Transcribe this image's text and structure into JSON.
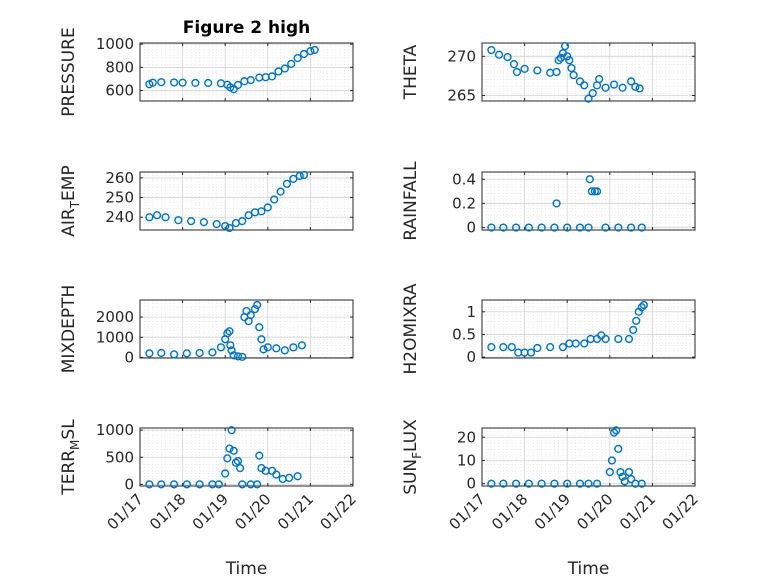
{
  "chart_data": [
    {
      "type": "scatter",
      "title": "Figure 2 high",
      "ylabel": {
        "main": "PRESSURE"
      },
      "x_range": [
        "01/17",
        "01/22"
      ],
      "ylim": [
        510,
        1010
      ],
      "yticks": [
        "600",
        "800",
        "1000"
      ],
      "ytick_values": [
        600,
        800,
        1000
      ],
      "xticks": [],
      "xlabel": "",
      "grid": true,
      "points": [
        [
          0.22,
          655
        ],
        [
          0.3,
          668
        ],
        [
          0.5,
          672
        ],
        [
          0.8,
          670
        ],
        [
          1.0,
          668
        ],
        [
          1.3,
          666
        ],
        [
          1.6,
          665
        ],
        [
          1.9,
          662
        ],
        [
          2.05,
          650
        ],
        [
          2.12,
          628
        ],
        [
          2.2,
          612
        ],
        [
          2.3,
          648
        ],
        [
          2.45,
          680
        ],
        [
          2.6,
          690
        ],
        [
          2.8,
          712
        ],
        [
          2.95,
          715
        ],
        [
          3.1,
          722
        ],
        [
          3.25,
          765
        ],
        [
          3.4,
          790
        ],
        [
          3.55,
          830
        ],
        [
          3.7,
          880
        ],
        [
          3.85,
          915
        ],
        [
          4.0,
          940
        ],
        [
          4.1,
          950
        ]
      ]
    },
    {
      "type": "scatter",
      "title": "",
      "ylabel": {
        "main": "THETA"
      },
      "x_range": [
        "01/17",
        "01/22"
      ],
      "ylim": [
        264.3,
        271.7
      ],
      "yticks": [
        "265",
        "270"
      ],
      "ytick_values": [
        265,
        270
      ],
      "xticks": [],
      "xlabel": "",
      "grid": true,
      "points": [
        [
          0.22,
          270.8
        ],
        [
          0.4,
          270.2
        ],
        [
          0.6,
          269.9
        ],
        [
          0.75,
          269.0
        ],
        [
          0.82,
          268.0
        ],
        [
          1.0,
          268.4
        ],
        [
          1.3,
          268.2
        ],
        [
          1.6,
          267.9
        ],
        [
          1.75,
          268.0
        ],
        [
          1.8,
          269.5
        ],
        [
          1.85,
          269.8
        ],
        [
          1.9,
          270.4
        ],
        [
          1.95,
          271.3
        ],
        [
          2.0,
          270.0
        ],
        [
          2.05,
          269.5
        ],
        [
          2.1,
          268.5
        ],
        [
          2.15,
          267.6
        ],
        [
          2.3,
          266.8
        ],
        [
          2.4,
          266.3
        ],
        [
          2.5,
          264.6
        ],
        [
          2.6,
          265.3
        ],
        [
          2.7,
          266.3
        ],
        [
          2.75,
          267.1
        ],
        [
          2.9,
          266.0
        ],
        [
          3.1,
          266.4
        ],
        [
          3.3,
          266.0
        ],
        [
          3.5,
          266.8
        ],
        [
          3.6,
          266.1
        ],
        [
          3.7,
          265.9
        ]
      ]
    },
    {
      "type": "scatter",
      "title": "",
      "ylabel": {
        "main": "AIR",
        "sub": "T",
        "rest": "EMP"
      },
      "x_range": [
        "01/17",
        "01/22"
      ],
      "ylim": [
        233.5,
        263
      ],
      "yticks": [
        "240",
        "250",
        "260"
      ],
      "ytick_values": [
        240,
        250,
        260
      ],
      "xticks": [],
      "xlabel": "",
      "grid": true,
      "points": [
        [
          0.22,
          240
        ],
        [
          0.4,
          241
        ],
        [
          0.6,
          240
        ],
        [
          0.9,
          238.5
        ],
        [
          1.2,
          238
        ],
        [
          1.5,
          237.5
        ],
        [
          1.8,
          236.5
        ],
        [
          2.0,
          235.5
        ],
        [
          2.1,
          234.5
        ],
        [
          2.25,
          237
        ],
        [
          2.4,
          238
        ],
        [
          2.55,
          241
        ],
        [
          2.7,
          242.5
        ],
        [
          2.85,
          243
        ],
        [
          3.0,
          245
        ],
        [
          3.15,
          249
        ],
        [
          3.3,
          253
        ],
        [
          3.45,
          257
        ],
        [
          3.6,
          259.5
        ],
        [
          3.75,
          261
        ],
        [
          3.85,
          261.5
        ]
      ]
    },
    {
      "type": "scatter",
      "title": "",
      "ylabel": {
        "main": "RAINFALL"
      },
      "x_range": [
        "01/17",
        "01/22"
      ],
      "ylim": [
        -0.02,
        0.46
      ],
      "yticks": [
        "0",
        "0.2",
        "0.4"
      ],
      "ytick_values": [
        0,
        0.2,
        0.4
      ],
      "xticks": [],
      "xlabel": "",
      "grid": true,
      "points": [
        [
          0.22,
          0
        ],
        [
          0.5,
          0
        ],
        [
          0.8,
          0
        ],
        [
          1.1,
          0
        ],
        [
          1.4,
          0
        ],
        [
          1.7,
          0
        ],
        [
          1.75,
          0.2
        ],
        [
          2.0,
          0
        ],
        [
          2.3,
          0
        ],
        [
          2.5,
          0
        ],
        [
          2.53,
          0.4
        ],
        [
          2.58,
          0.3
        ],
        [
          2.65,
          0.3
        ],
        [
          2.7,
          0.3
        ],
        [
          2.9,
          0
        ],
        [
          3.2,
          0
        ],
        [
          3.5,
          0
        ],
        [
          3.75,
          0
        ]
      ]
    },
    {
      "type": "scatter",
      "title": "",
      "ylabel": {
        "main": "MIXDEPTH"
      },
      "x_range": [
        "01/17",
        "01/22"
      ],
      "ylim": [
        -30,
        2850
      ],
      "yticks": [
        "0",
        "1000",
        "2000"
      ],
      "ytick_values": [
        0,
        1000,
        2000
      ],
      "xticks": [],
      "xlabel": "",
      "grid": true,
      "points": [
        [
          0.22,
          200
        ],
        [
          0.5,
          220
        ],
        [
          0.8,
          150
        ],
        [
          1.1,
          200
        ],
        [
          1.4,
          220
        ],
        [
          1.7,
          250
        ],
        [
          1.9,
          500
        ],
        [
          2.0,
          900
        ],
        [
          2.05,
          1200
        ],
        [
          2.1,
          1300
        ],
        [
          2.12,
          600
        ],
        [
          2.15,
          350
        ],
        [
          2.2,
          100
        ],
        [
          2.3,
          50
        ],
        [
          2.4,
          30
        ],
        [
          2.45,
          2000
        ],
        [
          2.5,
          2300
        ],
        [
          2.55,
          1800
        ],
        [
          2.6,
          2100
        ],
        [
          2.7,
          2400
        ],
        [
          2.75,
          2600
        ],
        [
          2.8,
          1500
        ],
        [
          2.85,
          900
        ],
        [
          2.9,
          400
        ],
        [
          3.0,
          500
        ],
        [
          3.2,
          450
        ],
        [
          3.4,
          350
        ],
        [
          3.6,
          500
        ],
        [
          3.8,
          600
        ]
      ]
    },
    {
      "type": "scatter",
      "title": "",
      "ylabel": {
        "main": "H2OMIXRA"
      },
      "x_range": [
        "01/17",
        "01/22"
      ],
      "ylim": [
        -0.02,
        1.26
      ],
      "yticks": [
        "0",
        "0.5",
        "1"
      ],
      "ytick_values": [
        0,
        0.5,
        1
      ],
      "xticks": [],
      "xlabel": "",
      "grid": true,
      "points": [
        [
          0.22,
          0.22
        ],
        [
          0.5,
          0.22
        ],
        [
          0.7,
          0.22
        ],
        [
          0.85,
          0.1
        ],
        [
          1.0,
          0.1
        ],
        [
          1.15,
          0.1
        ],
        [
          1.3,
          0.2
        ],
        [
          1.6,
          0.22
        ],
        [
          1.9,
          0.22
        ],
        [
          2.05,
          0.3
        ],
        [
          2.2,
          0.3
        ],
        [
          2.4,
          0.3
        ],
        [
          2.55,
          0.4
        ],
        [
          2.7,
          0.4
        ],
        [
          2.8,
          0.48
        ],
        [
          2.9,
          0.4
        ],
        [
          3.2,
          0.4
        ],
        [
          3.45,
          0.4
        ],
        [
          3.55,
          0.6
        ],
        [
          3.62,
          0.8
        ],
        [
          3.68,
          1.0
        ],
        [
          3.75,
          1.1
        ],
        [
          3.8,
          1.15
        ]
      ]
    },
    {
      "type": "scatter",
      "title": "",
      "ylabel": {
        "main": "TERR",
        "sub": "M",
        "rest": "SL"
      },
      "x_range": [
        "01/17",
        "01/22"
      ],
      "ylim": [
        -30,
        1040
      ],
      "yticks": [
        "0",
        "500",
        "1000"
      ],
      "ytick_values": [
        0,
        500,
        1000
      ],
      "xticks": [
        "01/17",
        "01/18",
        "01/19",
        "01/20",
        "01/21",
        "01/22"
      ],
      "xtick_values": [
        0,
        1,
        2,
        3,
        4,
        5
      ],
      "xlabel": "Time",
      "grid": true,
      "points": [
        [
          0.22,
          0
        ],
        [
          0.5,
          0
        ],
        [
          0.8,
          0
        ],
        [
          1.1,
          0
        ],
        [
          1.4,
          0
        ],
        [
          1.7,
          0
        ],
        [
          1.85,
          0
        ],
        [
          2.0,
          200
        ],
        [
          2.05,
          480
        ],
        [
          2.1,
          660
        ],
        [
          2.15,
          1000
        ],
        [
          2.2,
          620
        ],
        [
          2.25,
          400
        ],
        [
          2.3,
          430
        ],
        [
          2.35,
          300
        ],
        [
          2.4,
          0
        ],
        [
          2.6,
          0
        ],
        [
          2.75,
          0
        ],
        [
          2.8,
          530
        ],
        [
          2.85,
          300
        ],
        [
          2.95,
          250
        ],
        [
          3.1,
          250
        ],
        [
          3.2,
          180
        ],
        [
          3.35,
          100
        ],
        [
          3.5,
          120
        ],
        [
          3.7,
          150
        ]
      ]
    },
    {
      "type": "scatter",
      "title": "",
      "ylabel": {
        "main": "SUN",
        "sub": "F",
        "rest": "LUX"
      },
      "x_range": [
        "01/17",
        "01/22"
      ],
      "ylim": [
        -1,
        24
      ],
      "yticks": [
        "0",
        "10",
        "20"
      ],
      "ytick_values": [
        0,
        10,
        20
      ],
      "xticks": [
        "01/17",
        "01/18",
        "01/19",
        "01/20",
        "01/21",
        "01/22"
      ],
      "xtick_values": [
        0,
        1,
        2,
        3,
        4,
        5
      ],
      "xlabel": "Time",
      "grid": true,
      "points": [
        [
          0.22,
          0
        ],
        [
          0.5,
          0
        ],
        [
          0.8,
          0
        ],
        [
          1.1,
          0
        ],
        [
          1.4,
          0
        ],
        [
          1.7,
          0
        ],
        [
          2.0,
          0
        ],
        [
          2.3,
          0
        ],
        [
          2.5,
          0
        ],
        [
          2.7,
          0
        ],
        [
          3.0,
          5
        ],
        [
          3.05,
          10
        ],
        [
          3.1,
          22
        ],
        [
          3.15,
          23
        ],
        [
          3.2,
          15
        ],
        [
          3.25,
          5
        ],
        [
          3.3,
          3
        ],
        [
          3.35,
          1
        ],
        [
          3.45,
          5
        ],
        [
          3.5,
          2
        ],
        [
          3.6,
          0
        ],
        [
          3.75,
          0
        ]
      ]
    }
  ],
  "colors": {
    "marker": "#0072BD",
    "axis": "#262626",
    "grid": "#dedede"
  }
}
